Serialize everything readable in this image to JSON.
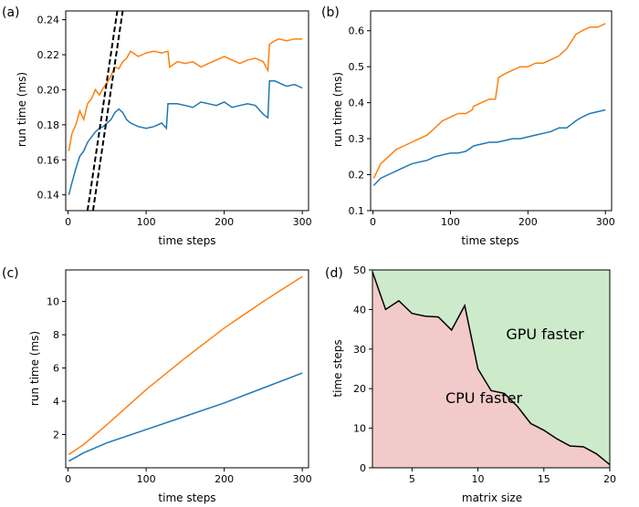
{
  "colors": {
    "blue": "#1f77b4",
    "orange": "#ff7f0e",
    "black": "#000000",
    "cpu_fill": "#f2caca",
    "gpu_fill": "#cdebcb"
  },
  "chart_data": [
    {
      "panel": "(a)",
      "type": "line",
      "xlabel": "time steps",
      "ylabel": "run time (ms)",
      "xlim": [
        -3,
        308
      ],
      "ylim": [
        0.131,
        0.245
      ],
      "xticks": [
        0,
        100,
        200,
        300
      ],
      "yticks": [
        0.14,
        0.16,
        0.18,
        0.2,
        0.22,
        0.24
      ],
      "ytick_labels": [
        "0.14",
        "0.16",
        "0.18",
        "0.20",
        "0.22",
        "0.24"
      ],
      "series": [
        {
          "color": "orange",
          "style": "solid",
          "x": [
            1,
            5,
            10,
            15,
            20,
            25,
            30,
            35,
            40,
            45,
            50,
            55,
            60,
            65,
            70,
            75,
            80,
            90,
            100,
            110,
            120,
            128,
            130,
            140,
            150,
            160,
            170,
            180,
            190,
            200,
            210,
            220,
            230,
            240,
            250,
            256,
            258,
            265,
            270,
            280,
            290,
            300
          ],
          "y": [
            0.165,
            0.175,
            0.18,
            0.188,
            0.183,
            0.192,
            0.195,
            0.2,
            0.197,
            0.201,
            0.204,
            0.208,
            0.213,
            0.212,
            0.216,
            0.218,
            0.222,
            0.219,
            0.221,
            0.222,
            0.221,
            0.222,
            0.213,
            0.216,
            0.215,
            0.216,
            0.213,
            0.215,
            0.217,
            0.219,
            0.217,
            0.215,
            0.217,
            0.218,
            0.216,
            0.211,
            0.226,
            0.228,
            0.229,
            0.228,
            0.229,
            0.229
          ]
        },
        {
          "color": "blue",
          "style": "solid",
          "x": [
            1,
            5,
            10,
            15,
            20,
            25,
            30,
            35,
            40,
            45,
            50,
            55,
            60,
            65,
            70,
            75,
            80,
            90,
            100,
            110,
            120,
            126,
            128,
            140,
            150,
            160,
            170,
            180,
            190,
            200,
            210,
            220,
            230,
            240,
            250,
            256,
            258,
            265,
            270,
            280,
            290,
            300
          ],
          "y": [
            0.14,
            0.147,
            0.155,
            0.162,
            0.165,
            0.17,
            0.173,
            0.176,
            0.178,
            0.179,
            0.181,
            0.183,
            0.187,
            0.189,
            0.187,
            0.183,
            0.181,
            0.179,
            0.178,
            0.179,
            0.181,
            0.178,
            0.192,
            0.192,
            0.191,
            0.19,
            0.193,
            0.192,
            0.191,
            0.193,
            0.19,
            0.191,
            0.192,
            0.191,
            0.186,
            0.184,
            0.205,
            0.205,
            0.204,
            0.202,
            0.203,
            0.201
          ]
        },
        {
          "color": "black",
          "style": "dashed",
          "x": [
            25,
            63
          ],
          "y": [
            0.131,
            0.245
          ]
        },
        {
          "color": "black",
          "style": "dashed",
          "x": [
            32,
            70
          ],
          "y": [
            0.131,
            0.245
          ]
        }
      ]
    },
    {
      "panel": "(b)",
      "type": "line",
      "xlabel": "time steps",
      "ylabel": "run time (ms)",
      "xlim": [
        -3,
        308
      ],
      "ylim": [
        0.1,
        0.655
      ],
      "xticks": [
        0,
        100,
        200,
        300
      ],
      "yticks": [
        0.1,
        0.2,
        0.3,
        0.4,
        0.5,
        0.6
      ],
      "ytick_labels": [
        "0.1",
        "0.2",
        "0.3",
        "0.4",
        "0.5",
        "0.6"
      ],
      "series": [
        {
          "color": "orange",
          "style": "solid",
          "x": [
            1,
            10,
            20,
            30,
            40,
            50,
            60,
            70,
            80,
            90,
            100,
            110,
            120,
            128,
            130,
            140,
            150,
            158,
            162,
            170,
            180,
            190,
            200,
            210,
            220,
            230,
            240,
            250,
            256,
            262,
            270,
            280,
            290,
            300
          ],
          "y": [
            0.19,
            0.23,
            0.25,
            0.27,
            0.28,
            0.29,
            0.3,
            0.31,
            0.33,
            0.35,
            0.36,
            0.37,
            0.37,
            0.38,
            0.39,
            0.4,
            0.41,
            0.41,
            0.47,
            0.48,
            0.49,
            0.5,
            0.5,
            0.51,
            0.51,
            0.52,
            0.53,
            0.55,
            0.57,
            0.59,
            0.6,
            0.61,
            0.61,
            0.62
          ]
        },
        {
          "color": "blue",
          "style": "solid",
          "x": [
            1,
            10,
            20,
            30,
            40,
            50,
            60,
            70,
            80,
            90,
            100,
            110,
            120,
            130,
            140,
            150,
            160,
            170,
            180,
            190,
            200,
            210,
            220,
            230,
            240,
            250,
            256,
            262,
            270,
            280,
            290,
            300
          ],
          "y": [
            0.17,
            0.19,
            0.2,
            0.21,
            0.22,
            0.23,
            0.235,
            0.24,
            0.25,
            0.255,
            0.26,
            0.26,
            0.265,
            0.28,
            0.285,
            0.29,
            0.29,
            0.295,
            0.3,
            0.3,
            0.305,
            0.31,
            0.315,
            0.32,
            0.33,
            0.33,
            0.34,
            0.35,
            0.36,
            0.37,
            0.375,
            0.38
          ]
        }
      ]
    },
    {
      "panel": "(c)",
      "type": "line",
      "xlabel": "time steps",
      "ylabel": "run time (ms)",
      "xlim": [
        -3,
        308
      ],
      "ylim": [
        0,
        11.9
      ],
      "xticks": [
        0,
        100,
        200,
        300
      ],
      "yticks": [
        2,
        4,
        6,
        8,
        10
      ],
      "ytick_labels": [
        "2",
        "4",
        "6",
        "8",
        "10"
      ],
      "series": [
        {
          "color": "orange",
          "style": "solid",
          "x": [
            1,
            20,
            50,
            100,
            150,
            200,
            250,
            300
          ],
          "y": [
            0.8,
            1.4,
            2.6,
            4.7,
            6.6,
            8.4,
            10.0,
            11.5
          ]
        },
        {
          "color": "blue",
          "style": "solid",
          "x": [
            1,
            20,
            50,
            100,
            150,
            200,
            250,
            300
          ],
          "y": [
            0.4,
            0.9,
            1.5,
            2.3,
            3.1,
            3.9,
            4.8,
            5.7
          ]
        }
      ]
    },
    {
      "panel": "(d)",
      "type": "area",
      "xlabel": "matrix size",
      "ylabel": "time steps",
      "xlim": [
        2,
        20
      ],
      "ylim": [
        0,
        50
      ],
      "xticks": [
        5,
        10,
        15,
        20
      ],
      "yticks": [
        0,
        10,
        20,
        30,
        40,
        50
      ],
      "ytick_labels": [
        "0",
        "10",
        "20",
        "30",
        "40",
        "50"
      ],
      "boundary": {
        "x": [
          2,
          3,
          4,
          5,
          6,
          7,
          8,
          9,
          10,
          11,
          12,
          13,
          14,
          15,
          16,
          17,
          18,
          19,
          20
        ],
        "y": [
          49.5,
          40,
          42.2,
          39,
          38.3,
          38.1,
          34.8,
          41,
          25,
          19.5,
          18.8,
          15.5,
          11.2,
          9.5,
          7.3,
          5.5,
          5.3,
          3.5,
          0.8
        ]
      },
      "below_label": "CPU faster",
      "above_label": "GPU faster"
    }
  ]
}
